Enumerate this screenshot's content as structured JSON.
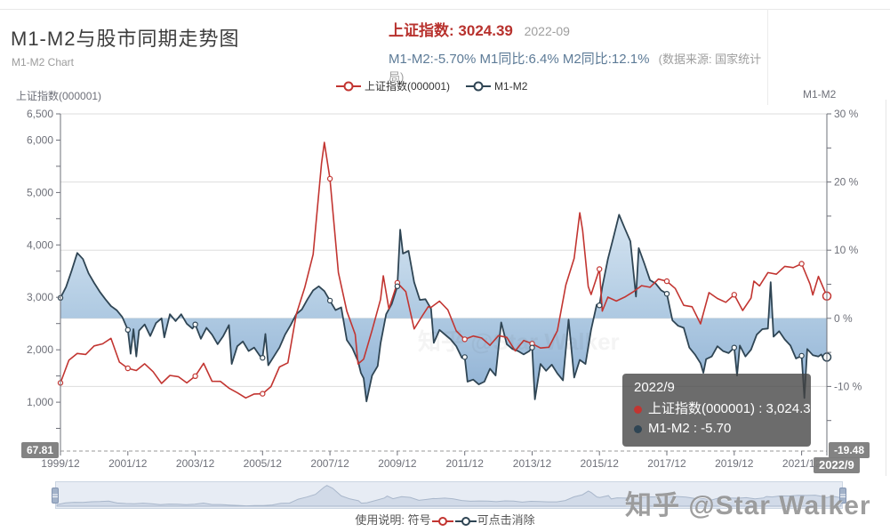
{
  "header": {
    "title": "M1-M2与股市同期走势图",
    "subtitle": "M1-M2 Chart",
    "index_label": "上证指数:",
    "index_value": "3024.39",
    "index_date": "2022-09",
    "stats_line": "M1-M2:-5.70% M1同比:6.4% M2同比:12.1%",
    "source_note": "(数据来源: 国家统计局)"
  },
  "legend": {
    "items": [
      {
        "label": "上证指数(000001)",
        "color": "#c23531"
      },
      {
        "label": "M1-M2",
        "color": "#2f4554"
      }
    ]
  },
  "axes": {
    "left_title": "上证指数(000001)",
    "right_title": "M1-M2",
    "left_ticks": [
      "6,500",
      "6,000",
      "5,000",
      "4,000",
      "3,000",
      "2,000",
      "1,000"
    ],
    "left_tick_values": [
      6500,
      6000,
      5000,
      4000,
      3000,
      2000,
      1000
    ],
    "left_min_label": "67.81",
    "right_ticks": [
      "30 %",
      "20 %",
      "10 %",
      "0 %",
      "-10 %"
    ],
    "right_tick_values": [
      30,
      20,
      10,
      0,
      -10
    ],
    "right_min_label": "-19.48",
    "x_ticks": [
      "1999/12",
      "2001/12",
      "2003/12",
      "2005/12",
      "2007/12",
      "2009/12",
      "2011/12",
      "2013/12",
      "2015/12",
      "2017/12",
      "2019/12",
      "2021/12"
    ],
    "x_pointer_label": "2022/9"
  },
  "tooltip": {
    "title": "2022/9",
    "rows": [
      {
        "label": "上证指数(000001)",
        "value": "3,024.39",
        "color": "#c23531"
      },
      {
        "label": "M1-M2",
        "value": "-5.70",
        "color": "#2f4554"
      }
    ]
  },
  "footer": {
    "usage_prefix": "使用说明: 符号",
    "usage_suffix": "可点击消除",
    "watermark": "知乎 @Star Walker"
  },
  "colors": {
    "sse": "#c23531",
    "m1m2": "#2f4554",
    "area_top": "#d2e2f0",
    "area_mid": "#a9c6e0",
    "area_bottom": "#82a8cf",
    "grid": "#dddddd",
    "axis": "#6e7079",
    "badge_bg": "#7c7c7c"
  },
  "chart_data": {
    "type": "line",
    "title": "M1-M2与股市同期走势图",
    "x_range": [
      "1999/12",
      "2022/9"
    ],
    "left_axis": {
      "label": "上证指数(000001)",
      "min": 67.81,
      "max": 6500
    },
    "right_axis": {
      "label": "M1-M2",
      "min": -19.48,
      "max": 30,
      "unit": "%"
    },
    "grid": true,
    "legend_position": "top",
    "series": [
      {
        "name": "上证指数(000001)",
        "axis": "left",
        "color": "#c23531",
        "points": [
          [
            "1999/12",
            1367
          ],
          [
            "2000/3",
            1800
          ],
          [
            "2000/6",
            1929
          ],
          [
            "2000/9",
            1911
          ],
          [
            "2000/12",
            2073
          ],
          [
            "2001/3",
            2113
          ],
          [
            "2001/6",
            2218
          ],
          [
            "2001/9",
            1765
          ],
          [
            "2001/12",
            1646
          ],
          [
            "2002/3",
            1603
          ],
          [
            "2002/6",
            1732
          ],
          [
            "2002/9",
            1582
          ],
          [
            "2002/12",
            1358
          ],
          [
            "2003/3",
            1511
          ],
          [
            "2003/6",
            1487
          ],
          [
            "2003/9",
            1367
          ],
          [
            "2003/12",
            1497
          ],
          [
            "2004/3",
            1742
          ],
          [
            "2004/6",
            1399
          ],
          [
            "2004/9",
            1396
          ],
          [
            "2004/12",
            1267
          ],
          [
            "2005/3",
            1181
          ],
          [
            "2005/6",
            1081
          ],
          [
            "2005/9",
            1155
          ],
          [
            "2005/12",
            1161
          ],
          [
            "2006/3",
            1298
          ],
          [
            "2006/6",
            1672
          ],
          [
            "2006/9",
            1752
          ],
          [
            "2006/12",
            2675
          ],
          [
            "2007/3",
            3184
          ],
          [
            "2007/6",
            3821
          ],
          [
            "2007/9",
            5552
          ],
          [
            "2007/10",
            5955
          ],
          [
            "2007/12",
            5262
          ],
          [
            "2008/3",
            3473
          ],
          [
            "2008/6",
            2736
          ],
          [
            "2008/9",
            2294
          ],
          [
            "2008/10",
            1729
          ],
          [
            "2008/12",
            1821
          ],
          [
            "2009/3",
            2373
          ],
          [
            "2009/6",
            2959
          ],
          [
            "2009/7",
            3412
          ],
          [
            "2009/9",
            2780
          ],
          [
            "2009/12",
            3277
          ],
          [
            "2010/3",
            3109
          ],
          [
            "2010/6",
            2398
          ],
          [
            "2010/9",
            2656
          ],
          [
            "2010/11",
            2820
          ],
          [
            "2010/12",
            2808
          ],
          [
            "2011/3",
            2928
          ],
          [
            "2011/6",
            2762
          ],
          [
            "2011/9",
            2359
          ],
          [
            "2011/12",
            2199
          ],
          [
            "2012/3",
            2263
          ],
          [
            "2012/6",
            2225
          ],
          [
            "2012/9",
            2086
          ],
          [
            "2012/12",
            2269
          ],
          [
            "2013/3",
            2237
          ],
          [
            "2013/6",
            1979
          ],
          [
            "2013/9",
            2175
          ],
          [
            "2013/12",
            2116
          ],
          [
            "2014/3",
            2033
          ],
          [
            "2014/6",
            2048
          ],
          [
            "2014/9",
            2364
          ],
          [
            "2014/12",
            3235
          ],
          [
            "2015/3",
            3748
          ],
          [
            "2015/5",
            4612
          ],
          [
            "2015/6",
            4277
          ],
          [
            "2015/8",
            3206
          ],
          [
            "2015/9",
            3053
          ],
          [
            "2015/12",
            3539
          ],
          [
            "2016/1",
            2738
          ],
          [
            "2016/3",
            3004
          ],
          [
            "2016/6",
            2930
          ],
          [
            "2016/9",
            3005
          ],
          [
            "2016/12",
            3104
          ],
          [
            "2017/3",
            3223
          ],
          [
            "2017/6",
            3192
          ],
          [
            "2017/9",
            3349
          ],
          [
            "2017/12",
            3307
          ],
          [
            "2018/3",
            3169
          ],
          [
            "2018/6",
            2847
          ],
          [
            "2018/9",
            2821
          ],
          [
            "2018/12",
            2494
          ],
          [
            "2019/3",
            3091
          ],
          [
            "2019/6",
            2979
          ],
          [
            "2019/9",
            2905
          ],
          [
            "2019/12",
            3050
          ],
          [
            "2020/3",
            2750
          ],
          [
            "2020/6",
            2985
          ],
          [
            "2020/7",
            3310
          ],
          [
            "2020/9",
            3218
          ],
          [
            "2020/12",
            3473
          ],
          [
            "2021/3",
            3442
          ],
          [
            "2021/6",
            3591
          ],
          [
            "2021/9",
            3568
          ],
          [
            "2021/12",
            3640
          ],
          [
            "2022/3",
            3252
          ],
          [
            "2022/4",
            3047
          ],
          [
            "2022/6",
            3399
          ],
          [
            "2022/9",
            3024.39
          ]
        ]
      },
      {
        "name": "M1-M2",
        "axis": "right",
        "color": "#2f4554",
        "area": true,
        "area_baseline": 0,
        "points": [
          [
            "1999/12",
            3.0
          ],
          [
            "2000/2",
            4.6
          ],
          [
            "2000/4",
            7.0
          ],
          [
            "2000/6",
            9.6
          ],
          [
            "2000/8",
            8.7
          ],
          [
            "2000/10",
            6.6
          ],
          [
            "2000/12",
            5.2
          ],
          [
            "2001/2",
            3.9
          ],
          [
            "2001/4",
            2.8
          ],
          [
            "2001/6",
            1.8
          ],
          [
            "2001/8",
            1.2
          ],
          [
            "2001/10",
            0.2
          ],
          [
            "2001/12",
            -1.7
          ],
          [
            "2002/1",
            -5.2
          ],
          [
            "2002/2",
            -1.6
          ],
          [
            "2002/3",
            -5.6
          ],
          [
            "2002/4",
            -1.8
          ],
          [
            "2002/6",
            -0.9
          ],
          [
            "2002/8",
            -2.6
          ],
          [
            "2002/10",
            -0.7
          ],
          [
            "2002/12",
            0.0
          ],
          [
            "2003/1",
            -2.8
          ],
          [
            "2003/3",
            0.6
          ],
          [
            "2003/5",
            -0.4
          ],
          [
            "2003/7",
            0.6
          ],
          [
            "2003/9",
            -0.8
          ],
          [
            "2003/11",
            -1.5
          ],
          [
            "2003/12",
            -0.9
          ],
          [
            "2004/2",
            -3.0
          ],
          [
            "2004/4",
            -1.4
          ],
          [
            "2004/6",
            -2.4
          ],
          [
            "2004/8",
            -3.8
          ],
          [
            "2004/10",
            -2.6
          ],
          [
            "2004/12",
            -1.0
          ],
          [
            "2005/1",
            -6.7
          ],
          [
            "2005/3",
            -4.1
          ],
          [
            "2005/5",
            -3.4
          ],
          [
            "2005/7",
            -4.8
          ],
          [
            "2005/9",
            -4.3
          ],
          [
            "2005/11",
            -5.5
          ],
          [
            "2005/12",
            -5.8
          ],
          [
            "2006/1",
            -2.3
          ],
          [
            "2006/2",
            -6.9
          ],
          [
            "2006/4",
            -5.6
          ],
          [
            "2006/6",
            -4.3
          ],
          [
            "2006/8",
            -2.4
          ],
          [
            "2006/10",
            -1.0
          ],
          [
            "2006/12",
            0.6
          ],
          [
            "2007/2",
            1.3
          ],
          [
            "2007/4",
            2.8
          ],
          [
            "2007/6",
            4.1
          ],
          [
            "2007/8",
            4.7
          ],
          [
            "2007/10",
            4.0
          ],
          [
            "2007/12",
            2.6
          ],
          [
            "2008/2",
            1.2
          ],
          [
            "2008/4",
            1.6
          ],
          [
            "2008/6",
            -3.2
          ],
          [
            "2008/8",
            -4.4
          ],
          [
            "2008/10",
            -6.3
          ],
          [
            "2008/11",
            -8.0
          ],
          [
            "2008/12",
            -8.8
          ],
          [
            "2009/1",
            -12.2
          ],
          [
            "2009/3",
            -8.4
          ],
          [
            "2009/5",
            -7.0
          ],
          [
            "2009/6",
            -3.7
          ],
          [
            "2009/8",
            0.6
          ],
          [
            "2009/10",
            2.1
          ],
          [
            "2009/12",
            4.7
          ],
          [
            "2010/1",
            13.0
          ],
          [
            "2010/2",
            9.5
          ],
          [
            "2010/4",
            9.9
          ],
          [
            "2010/6",
            5.3
          ],
          [
            "2010/8",
            2.7
          ],
          [
            "2010/10",
            2.8
          ],
          [
            "2010/12",
            1.4
          ],
          [
            "2011/1",
            -3.6
          ],
          [
            "2011/3",
            -1.7
          ],
          [
            "2011/5",
            -2.4
          ],
          [
            "2011/7",
            -3.1
          ],
          [
            "2011/9",
            -4.1
          ],
          [
            "2011/11",
            -5.8
          ],
          [
            "2011/12",
            -5.7
          ],
          [
            "2012/1",
            -9.3
          ],
          [
            "2012/3",
            -9.0
          ],
          [
            "2012/5",
            -9.7
          ],
          [
            "2012/7",
            -9.3
          ],
          [
            "2012/9",
            -7.4
          ],
          [
            "2012/11",
            -8.4
          ],
          [
            "2013/1",
            -0.6
          ],
          [
            "2013/3",
            -3.8
          ],
          [
            "2013/5",
            -4.5
          ],
          [
            "2013/7",
            -4.8
          ],
          [
            "2013/9",
            -5.3
          ],
          [
            "2013/11",
            -4.8
          ],
          [
            "2013/12",
            -4.3
          ],
          [
            "2014/1",
            -11.9
          ],
          [
            "2014/3",
            -6.7
          ],
          [
            "2014/5",
            -7.7
          ],
          [
            "2014/7",
            -6.8
          ],
          [
            "2014/9",
            -8.1
          ],
          [
            "2014/11",
            -9.1
          ],
          [
            "2015/1",
            -0.2
          ],
          [
            "2015/3",
            -8.7
          ],
          [
            "2015/5",
            -6.1
          ],
          [
            "2015/7",
            -6.7
          ],
          [
            "2015/9",
            -1.7
          ],
          [
            "2015/11",
            2.0
          ],
          [
            "2015/12",
            1.9
          ],
          [
            "2016/1",
            4.6
          ],
          [
            "2016/3",
            8.7
          ],
          [
            "2016/5",
            11.9
          ],
          [
            "2016/7",
            15.2
          ],
          [
            "2016/9",
            13.2
          ],
          [
            "2016/11",
            11.3
          ],
          [
            "2017/1",
            3.2
          ],
          [
            "2017/2",
            10.3
          ],
          [
            "2017/4",
            8.0
          ],
          [
            "2017/6",
            5.6
          ],
          [
            "2017/8",
            5.1
          ],
          [
            "2017/10",
            4.1
          ],
          [
            "2017/12",
            3.6
          ],
          [
            "2018/2",
            -0.3
          ],
          [
            "2018/4",
            -1.1
          ],
          [
            "2018/6",
            -1.4
          ],
          [
            "2018/8",
            -4.3
          ],
          [
            "2018/10",
            -5.3
          ],
          [
            "2018/12",
            -6.6
          ],
          [
            "2019/1",
            -8.0
          ],
          [
            "2019/2",
            -6.0
          ],
          [
            "2019/4",
            -5.6
          ],
          [
            "2019/6",
            -4.1
          ],
          [
            "2019/8",
            -4.8
          ],
          [
            "2019/10",
            -5.1
          ],
          [
            "2019/12",
            -4.3
          ],
          [
            "2020/1",
            -8.4
          ],
          [
            "2020/2",
            -4.0
          ],
          [
            "2020/4",
            -5.6
          ],
          [
            "2020/6",
            -4.6
          ],
          [
            "2020/8",
            -2.4
          ],
          [
            "2020/10",
            -1.6
          ],
          [
            "2020/12",
            -1.5
          ],
          [
            "2021/1",
            5.3
          ],
          [
            "2021/2",
            -2.7
          ],
          [
            "2021/4",
            -1.9
          ],
          [
            "2021/6",
            -3.1
          ],
          [
            "2021/8",
            -4.0
          ],
          [
            "2021/10",
            -5.9
          ],
          [
            "2021/12",
            -5.5
          ],
          [
            "2022/1",
            -11.7
          ],
          [
            "2022/2",
            -4.5
          ],
          [
            "2022/4",
            -5.4
          ],
          [
            "2022/6",
            -5.6
          ],
          [
            "2022/7",
            -5.3
          ],
          [
            "2022/8",
            -6.1
          ],
          [
            "2022/9",
            -5.7
          ]
        ]
      }
    ]
  }
}
